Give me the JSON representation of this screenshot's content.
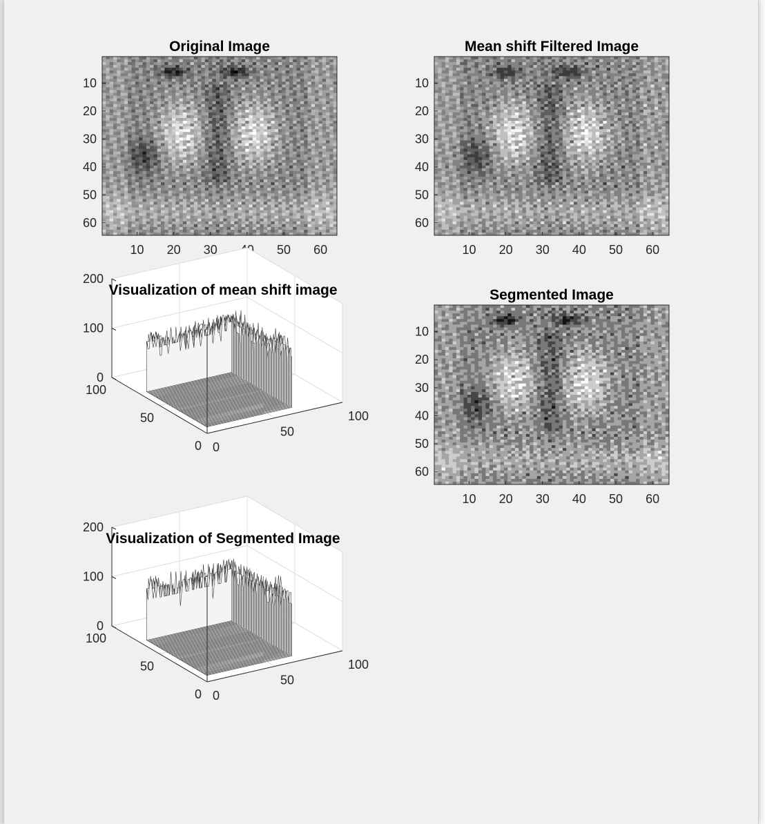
{
  "chart_data": [
    {
      "type": "heatmap",
      "title": "Original Image",
      "xticks": [
        "10",
        "20",
        "30",
        "40",
        "50",
        "60"
      ],
      "yticks": [
        "10",
        "20",
        "30",
        "40",
        "50",
        "60"
      ],
      "xlim": [
        0.5,
        64.5
      ],
      "ylim": [
        0.5,
        64.5
      ],
      "colormap": "gray",
      "variant": "original"
    },
    {
      "type": "heatmap",
      "title": "Mean shift Filtered Image",
      "xticks": [
        "10",
        "20",
        "30",
        "40",
        "50",
        "60"
      ],
      "yticks": [
        "10",
        "20",
        "30",
        "40",
        "50",
        "60"
      ],
      "xlim": [
        0.5,
        64.5
      ],
      "ylim": [
        0.5,
        64.5
      ],
      "colormap": "gray",
      "variant": "filtered"
    },
    {
      "type": "surface",
      "title": "Visualization of mean shift image",
      "zticks": [
        "0",
        "100",
        "200"
      ],
      "yticks": [
        "0",
        "50",
        "100"
      ],
      "xticks": [
        "0",
        "50",
        "100"
      ],
      "zlim": [
        0,
        200
      ],
      "xlim": [
        0,
        100
      ],
      "ylim": [
        0,
        100
      ],
      "grid": true
    },
    {
      "type": "heatmap",
      "title": "Segmented Image",
      "xticks": [
        "10",
        "20",
        "30",
        "40",
        "50",
        "60"
      ],
      "yticks": [
        "10",
        "20",
        "30",
        "40",
        "50",
        "60"
      ],
      "xlim": [
        0.5,
        64.5
      ],
      "ylim": [
        0.5,
        64.5
      ],
      "colormap": "gray",
      "variant": "segmented"
    },
    {
      "type": "surface",
      "title": "Visualization of Segmented Image",
      "zticks": [
        "0",
        "100",
        "200"
      ],
      "yticks": [
        "0",
        "50",
        "100"
      ],
      "xticks": [
        "0",
        "50",
        "100"
      ],
      "zlim": [
        0,
        200
      ],
      "xlim": [
        0,
        100
      ],
      "ylim": [
        0,
        100
      ],
      "grid": true
    }
  ]
}
